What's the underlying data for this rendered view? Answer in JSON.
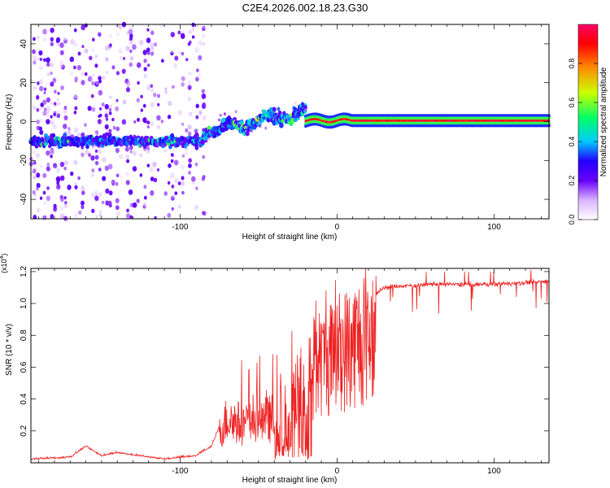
{
  "figure_title": "C2E4.2026.002.18.23.G30",
  "chart_data": [
    {
      "type": "heatmap",
      "name": "spectrogram",
      "xlabel": "Height of straight line (km)",
      "ylabel": "Frequency (Hz)",
      "xlim": [
        -195,
        135
      ],
      "ylim": [
        -50,
        50
      ],
      "xticks": [
        -100,
        0,
        100
      ],
      "xtick_labels": [
        "-100",
        "0",
        "100"
      ],
      "yticks": [
        -40,
        -20,
        0,
        20,
        40
      ],
      "ytick_labels": [
        "-40",
        "-20",
        "0",
        "20",
        "40"
      ],
      "grid": false,
      "description_of_structure": [
        {
          "x_range": [
            -195,
            -85
          ],
          "center_freq_hz": -10,
          "amplitude": 0.3,
          "scatter": "broadband vertical streaks -50..50 Hz"
        },
        {
          "x_range": [
            -85,
            -20
          ],
          "center_freq_hz_from": -5,
          "center_freq_hz_to": 5,
          "amplitude": 0.45
        },
        {
          "x_range": [
            -20,
            135
          ],
          "center_freq_hz": 0.5,
          "amplitude": 0.95,
          "band": "narrow horizontal line"
        }
      ],
      "colorbar": {
        "label": "Normalized spectral amplitude",
        "range": [
          0,
          1
        ],
        "ticks": [
          0.0,
          0.2,
          0.4,
          0.6,
          0.8
        ],
        "tick_labels": [
          "0.0",
          "0.2",
          "0.4",
          "0.6",
          "0.8"
        ],
        "colors": [
          "#ffffff",
          "#9b4dff",
          "#2200ff",
          "#00d9ff",
          "#00ff66",
          "#ccff00",
          "#ff8800",
          "#ff0000",
          "#ff0066"
        ]
      }
    },
    {
      "type": "line",
      "name": "snr",
      "xlabel": "Height of straight line (km)",
      "ylabel": "SNR (10 * v/v)",
      "y_multiplier": "(x10",
      "y_multiplier_exp": "4",
      "y_multiplier_close": ")",
      "xlim": [
        -195,
        135
      ],
      "ylim": [
        0,
        1.22
      ],
      "xticks": [
        -100,
        0,
        100
      ],
      "xtick_labels": [
        "-100",
        "0",
        "100"
      ],
      "yticks": [
        0.2,
        0.4,
        0.6,
        0.8,
        1.0,
        1.2
      ],
      "ytick_labels": [
        "0.2",
        "0.4",
        "0.6",
        "0.8",
        "1.0",
        "1.2"
      ],
      "grid": false,
      "line_color": "#ee2222",
      "envelope_points": [
        {
          "x": -195,
          "y": 0.02
        },
        {
          "x": -170,
          "y": 0.03
        },
        {
          "x": -160,
          "y": 0.1
        },
        {
          "x": -150,
          "y": 0.04
        },
        {
          "x": -140,
          "y": 0.06
        },
        {
          "x": -110,
          "y": 0.02
        },
        {
          "x": -90,
          "y": 0.04
        },
        {
          "x": -80,
          "y": 0.1
        },
        {
          "x": -70,
          "y": 0.35
        },
        {
          "x": -60,
          "y": 0.3
        },
        {
          "x": -40,
          "y": 0.35
        },
        {
          "x": -25,
          "y": 0.55
        },
        {
          "x": -15,
          "y": 0.75
        },
        {
          "x": 0,
          "y": 0.85
        },
        {
          "x": 10,
          "y": 0.92
        },
        {
          "x": 20,
          "y": 1.02
        },
        {
          "x": 30,
          "y": 1.1
        },
        {
          "x": 60,
          "y": 1.12
        },
        {
          "x": 100,
          "y": 1.12
        },
        {
          "x": 135,
          "y": 1.14
        }
      ]
    }
  ]
}
